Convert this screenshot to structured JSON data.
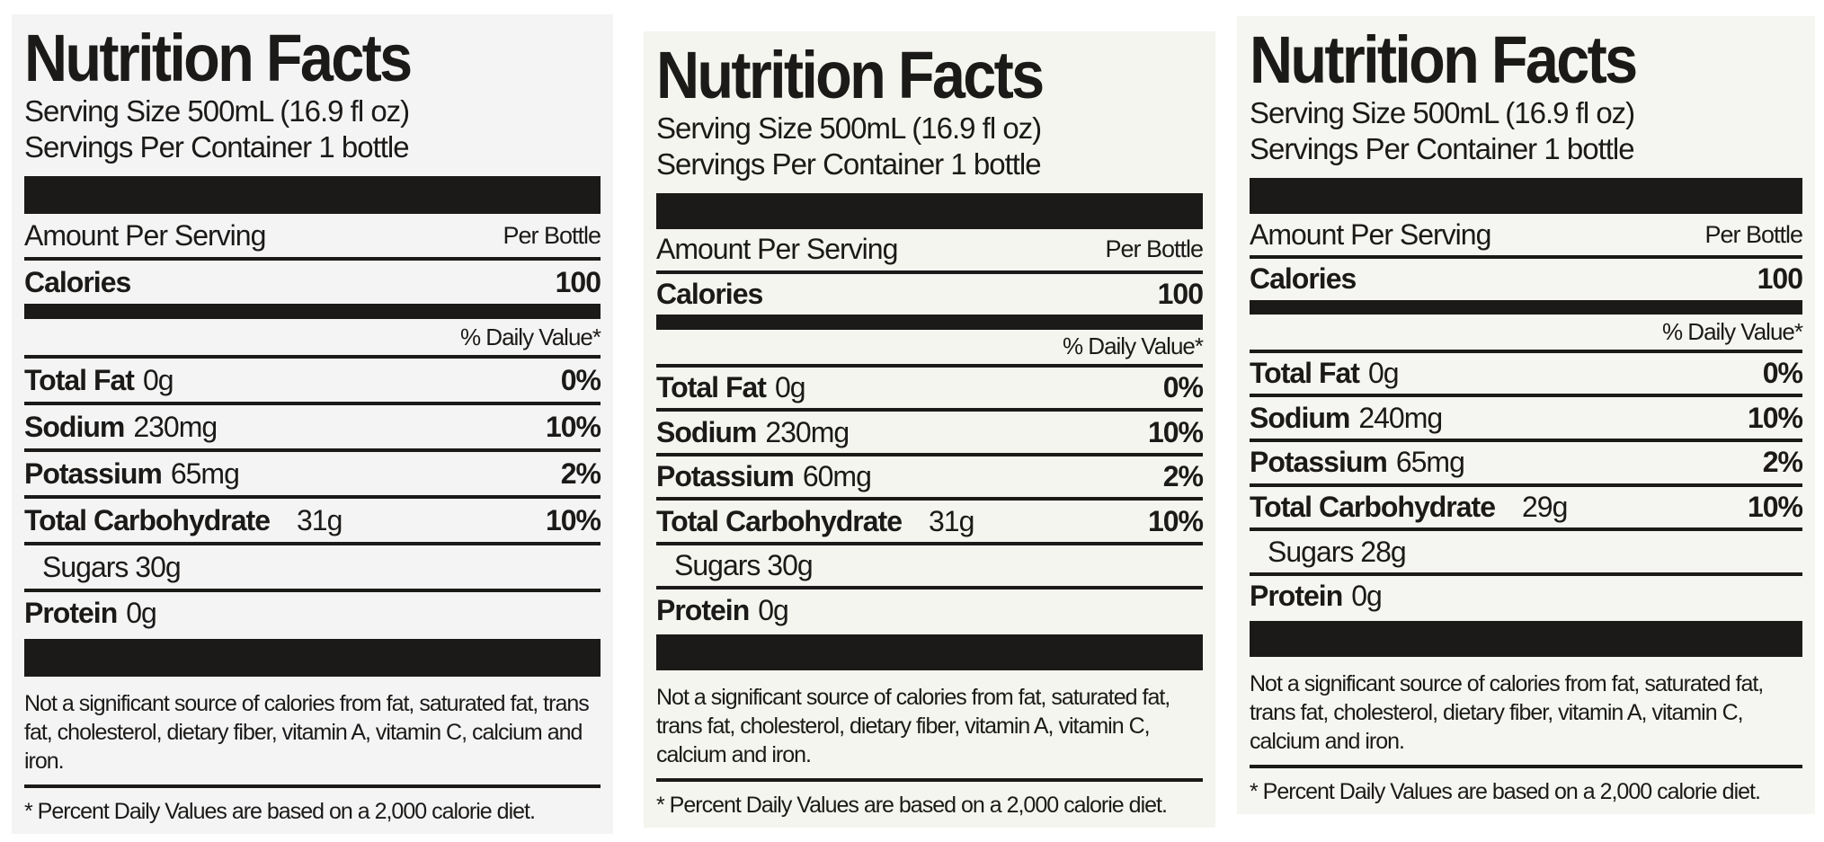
{
  "labels": [
    {
      "title": "Nutrition Facts",
      "serving_size": "Serving Size 500mL (16.9 fl oz)",
      "servings_per_container": "Servings Per Container 1 bottle",
      "amount_per_serving": "Amount Per Serving",
      "per_bottle": "Per Bottle",
      "calories_label": "Calories",
      "calories_value": "100",
      "dv_header": "% Daily Value*",
      "rows": [
        {
          "name": "Total Fat",
          "amount": "0g",
          "dv": "0%"
        },
        {
          "name": "Sodium",
          "amount": "230mg",
          "dv": "10%"
        },
        {
          "name": "Potassium",
          "amount": "65mg",
          "dv": "2%"
        },
        {
          "name": "Total Carbohydrate",
          "amount": "31g",
          "dv": "10%"
        }
      ],
      "sugars": "Sugars 30g",
      "protein_label": "Protein",
      "protein_amount": "0g",
      "footnote": "Not a significant source of calories from fat, saturated fat, trans fat, cholesterol, dietary fiber, vitamin A, vitamin C, calcium and iron.",
      "percent_note": "* Percent Daily Values are based on a 2,000 calorie diet."
    },
    {
      "title": "Nutrition Facts",
      "serving_size": "Serving Size 500mL (16.9 fl oz)",
      "servings_per_container": "Servings Per Container 1 bottle",
      "amount_per_serving": "Amount Per Serving",
      "per_bottle": "Per Bottle",
      "calories_label": "Calories",
      "calories_value": "100",
      "dv_header": "% Daily Value*",
      "rows": [
        {
          "name": "Total Fat",
          "amount": "0g",
          "dv": "0%"
        },
        {
          "name": "Sodium",
          "amount": "230mg",
          "dv": "10%"
        },
        {
          "name": "Potassium",
          "amount": "60mg",
          "dv": "2%"
        },
        {
          "name": "Total Carbohydrate",
          "amount": "31g",
          "dv": "10%"
        }
      ],
      "sugars": "Sugars 30g",
      "protein_label": "Protein",
      "protein_amount": "0g",
      "footnote": "Not a significant source of calories from fat, saturated fat, trans fat, cholesterol, dietary fiber, vitamin A, vitamin C, calcium and iron.",
      "percent_note": "* Percent Daily Values are based on a 2,000 calorie diet."
    },
    {
      "title": "Nutrition Facts",
      "serving_size": "Serving Size 500mL (16.9 fl oz)",
      "servings_per_container": "Servings Per Container 1 bottle",
      "amount_per_serving": "Amount Per Serving",
      "per_bottle": "Per Bottle",
      "calories_label": "Calories",
      "calories_value": "100",
      "dv_header": "% Daily Value*",
      "rows": [
        {
          "name": "Total Fat",
          "amount": "0g",
          "dv": "0%"
        },
        {
          "name": "Sodium",
          "amount": "240mg",
          "dv": "10%"
        },
        {
          "name": "Potassium",
          "amount": "65mg",
          "dv": "2%"
        },
        {
          "name": "Total Carbohydrate",
          "amount": "29g",
          "dv": "10%"
        }
      ],
      "sugars": "Sugars 28g",
      "protein_label": "Protein",
      "protein_amount": "0g",
      "footnote": "Not a significant source of calories from fat, saturated fat, trans fat, cholesterol, dietary fiber, vitamin A, vitamin C, calcium and iron.",
      "percent_note": "* Percent Daily Values are based on a 2,000 calorie diet."
    }
  ]
}
